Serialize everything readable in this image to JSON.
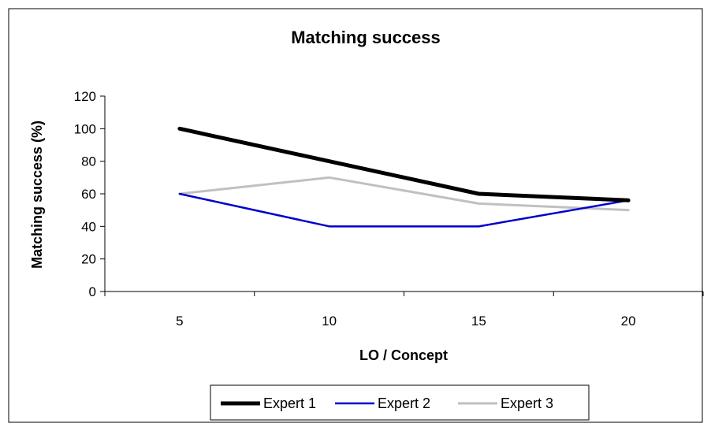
{
  "chart_data": {
    "type": "line",
    "title": "Matching success",
    "xlabel": "LO / Concept",
    "ylabel": "Matching success (%)",
    "categories": [
      "5",
      "10",
      "15",
      "20"
    ],
    "ylim": [
      0,
      120
    ],
    "yticks": [
      0,
      20,
      40,
      60,
      80,
      100,
      120
    ],
    "grid": false,
    "legend_position": "bottom",
    "series": [
      {
        "name": "Expert 1",
        "color": "#000000",
        "values": [
          100,
          80,
          60,
          56
        ]
      },
      {
        "name": "Expert 2",
        "color": "#0000cc",
        "values": [
          60,
          40,
          40,
          56
        ]
      },
      {
        "name": "Expert 3",
        "color": "#c0c0c0",
        "values": [
          60,
          70,
          54,
          50
        ]
      }
    ]
  }
}
